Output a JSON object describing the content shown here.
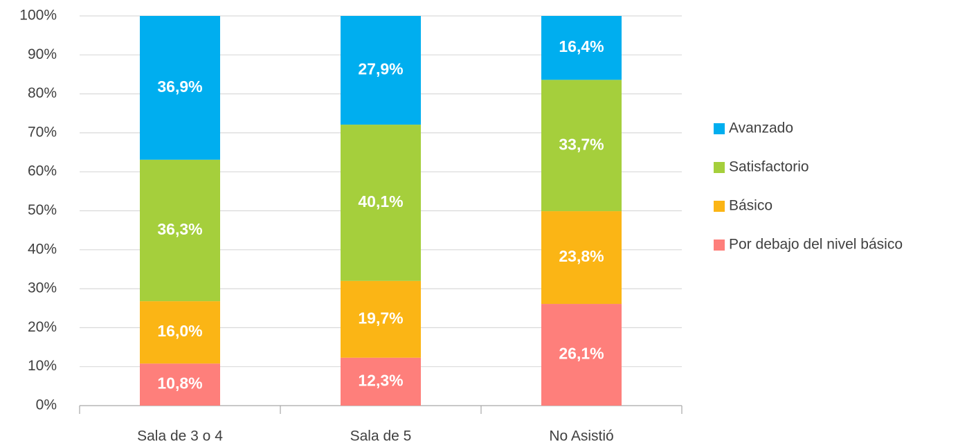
{
  "chart_data": {
    "type": "stacked_bar",
    "categories": [
      "Sala de 3 o 4",
      "Sala de 5",
      "No Asistió"
    ],
    "series": [
      {
        "name": "Por debajo del nivel básico",
        "color": "#fe7f7b",
        "values": [
          10.8,
          12.3,
          26.1
        ],
        "value_labels": [
          "10,8%",
          "12,3%",
          "26,1%"
        ]
      },
      {
        "name": "Básico",
        "color": "#fbb515",
        "values": [
          16.0,
          19.7,
          23.8
        ],
        "value_labels": [
          "16,0%",
          "19,7%",
          "23,8%"
        ]
      },
      {
        "name": "Satisfactorio",
        "color": "#a5cf3c",
        "values": [
          36.3,
          40.1,
          33.7
        ],
        "value_labels": [
          "36,3%",
          "40,1%",
          "33,7%"
        ]
      },
      {
        "name": "Avanzado",
        "color": "#00aeef",
        "values": [
          36.9,
          27.9,
          16.4
        ],
        "value_labels": [
          "36,9%",
          "27,9%",
          "16,4%"
        ]
      }
    ],
    "ylim": [
      0,
      100
    ],
    "yticks": [
      {
        "value": 0,
        "label": "0%"
      },
      {
        "value": 10,
        "label": "10%"
      },
      {
        "value": 20,
        "label": "20%"
      },
      {
        "value": 30,
        "label": "30%"
      },
      {
        "value": 40,
        "label": "40%"
      },
      {
        "value": 50,
        "label": "50%"
      },
      {
        "value": 60,
        "label": "60%"
      },
      {
        "value": 70,
        "label": "70%"
      },
      {
        "value": 80,
        "label": "80%"
      },
      {
        "value": 90,
        "label": "90%"
      },
      {
        "value": 100,
        "label": "100%"
      }
    ],
    "grid": true,
    "legend": "right"
  }
}
